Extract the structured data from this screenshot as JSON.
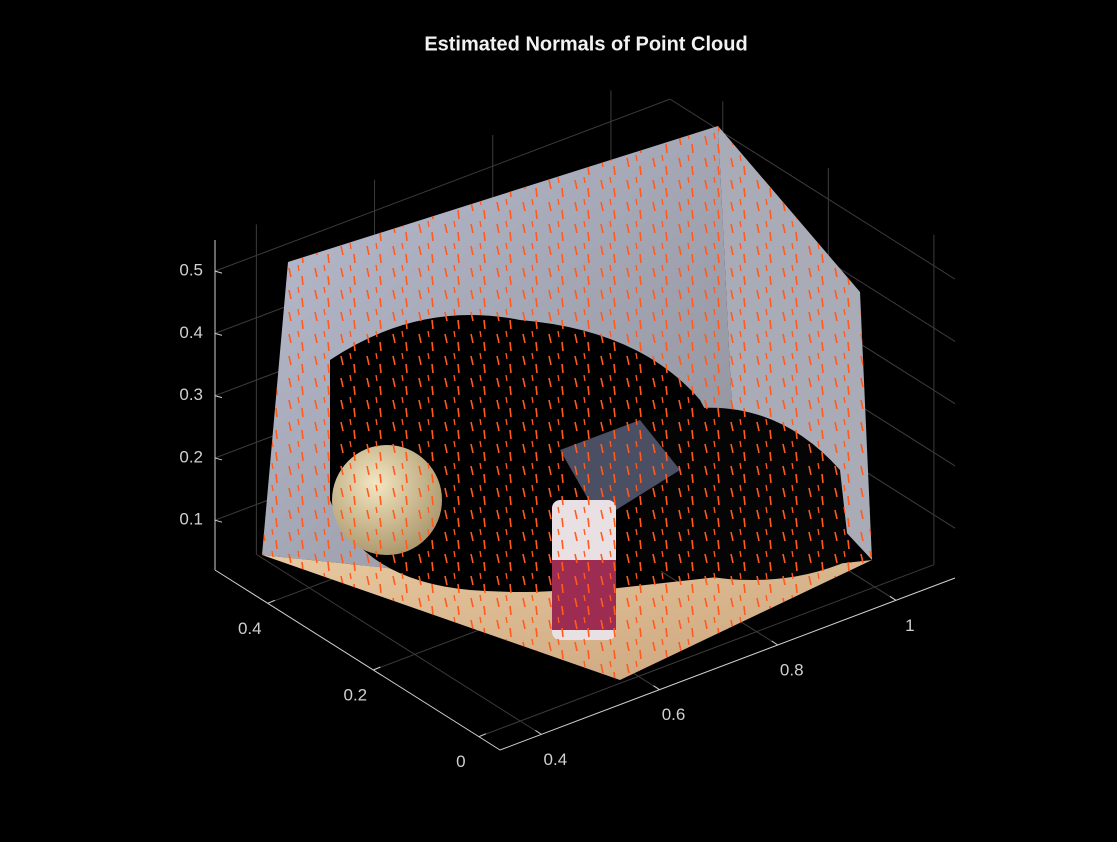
{
  "chart_data": {
    "type": "scatter3d",
    "title": "Estimated Normals of Point Cloud",
    "xlim": [
      0.33,
      1.1
    ],
    "xticks": [
      0.4,
      0.6,
      0.8,
      1
    ],
    "ylim": [
      -0.04,
      0.5
    ],
    "yticks": [
      0,
      0.2,
      0.4
    ],
    "zlim": [
      0.02,
      0.55
    ],
    "zticks": [
      0.1,
      0.2,
      0.3,
      0.4,
      0.5
    ],
    "grid": true
  }
}
